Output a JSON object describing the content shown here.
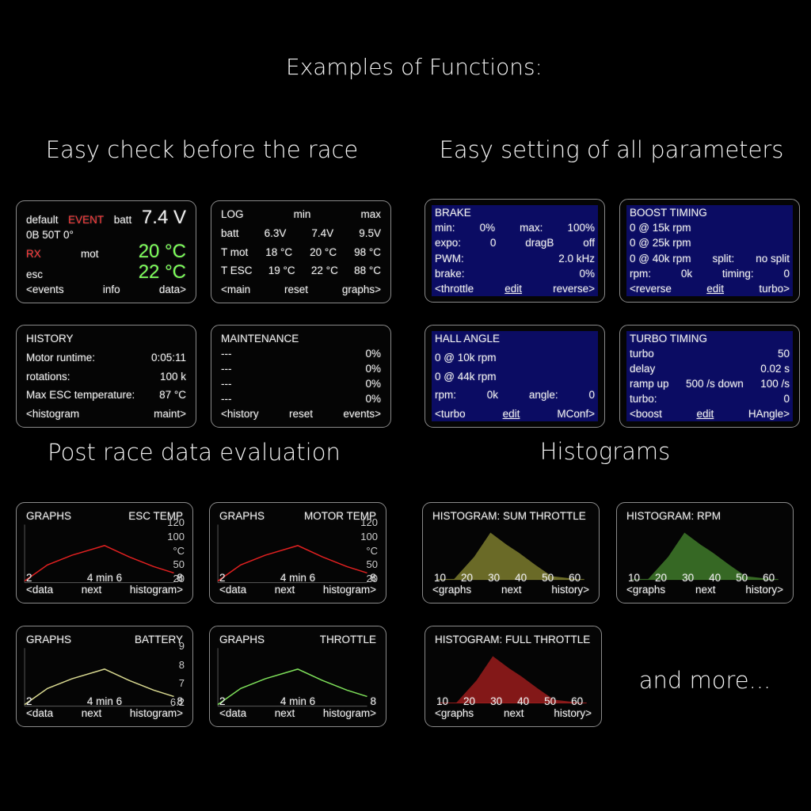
{
  "title": "Examples of Functions:",
  "footer_note": "and more...",
  "sections": [
    {
      "heading": "Easy check before the race",
      "screens": [
        {
          "type": "text",
          "rows": [
            [
              "default",
              {
                "text": "EVENT",
                "color": "#ff3b3b"
              },
              "batt",
              {
                "text": "7.4 V",
                "large": true
              }
            ],
            [
              "0B 50T 0°"
            ],
            [
              {
                "text": "RX",
                "color": "#ff3b3b"
              },
              "mot",
              {
                "text": "20 °C",
                "large": true,
                "color": "#7dff5a"
              }
            ],
            [
              "esc",
              {
                "text": "22 °C",
                "large": true,
                "color": "#7dff5a"
              }
            ],
            [
              "<events",
              "info",
              "data>"
            ]
          ]
        },
        {
          "type": "text",
          "rows": [
            [
              "LOG",
              "min",
              "max"
            ],
            [
              "batt",
              "6.3V",
              "7.4V",
              "9.5V"
            ],
            [
              "T mot",
              "18 °C",
              "20 °C",
              "98 °C"
            ],
            [
              "T ESC",
              "19 °C",
              "22 °C",
              "88 °C"
            ],
            [
              "<main",
              "reset",
              "graphs>"
            ]
          ]
        },
        {
          "type": "text",
          "rows": [
            [
              "HISTORY"
            ],
            [
              "Motor runtime:",
              "0:05:11"
            ],
            [
              "rotations:",
              "100 k"
            ],
            [
              "Max ESC temperature:",
              "87 °C"
            ],
            [
              "<histogram",
              "maint>"
            ]
          ]
        },
        {
          "type": "text",
          "rows": [
            [
              "MAINTENANCE"
            ],
            [
              "---",
              "0%"
            ],
            [
              "---",
              "0%"
            ],
            [
              "---",
              "0%"
            ],
            [
              "---",
              "0%"
            ],
            [
              "<history",
              "reset",
              "events>"
            ]
          ]
        }
      ]
    },
    {
      "heading": "Easy setting of all parameters",
      "screens": [
        {
          "type": "setting",
          "rows": [
            [
              "BRAKE"
            ],
            [
              "min:",
              "0%",
              "max:",
              "100%"
            ],
            [
              "expo:",
              "0",
              "dragB",
              "off"
            ],
            [
              "PWM:",
              "2.0 kHz"
            ],
            [
              "brake:",
              "0%"
            ],
            [
              "<throttle",
              {
                "text": "edit",
                "underline": true
              },
              "reverse>"
            ]
          ]
        },
        {
          "type": "setting",
          "rows": [
            [
              "BOOST TIMING"
            ],
            [
              "0 @ 15k rpm"
            ],
            [
              "0 @ 25k rpm"
            ],
            [
              "0 @ 40k rpm",
              "split:",
              "no split"
            ],
            [
              "rpm:",
              "0k",
              "timing:",
              "0"
            ],
            [
              "<reverse",
              {
                "text": "edit",
                "underline": true
              },
              "turbo>"
            ]
          ]
        },
        {
          "type": "setting",
          "rows": [
            [
              "HALL ANGLE"
            ],
            [
              "0 @ 10k rpm"
            ],
            [
              "0 @ 44k rpm"
            ],
            [
              "rpm:",
              "0k",
              "angle:",
              "0"
            ],
            [
              "<turbo",
              {
                "text": "edit",
                "underline": true
              },
              "MConf>"
            ]
          ]
        },
        {
          "type": "setting",
          "rows": [
            [
              "TURBO TIMING"
            ],
            [
              "turbo",
              "50"
            ],
            [
              "delay",
              "0.02 s"
            ],
            [
              "ramp up",
              "500 /s down",
              "100 /s"
            ],
            [
              "turbo:",
              "0"
            ],
            [
              "<boost",
              {
                "text": "edit",
                "underline": true
              },
              "HAngle>"
            ]
          ]
        }
      ]
    },
    {
      "heading": "Post race data evaluation",
      "screens": [
        {
          "type": "graph",
          "color": "#e02020",
          "rows": [
            [
              "GRAPHS",
              "ESC TEMP"
            ],
            [
              "2",
              "4 min 6",
              "8"
            ],
            [
              "<data",
              "next",
              "histogram>"
            ]
          ],
          "axis": [
            "120",
            "100",
            "°C",
            "50",
            "20"
          ]
        },
        {
          "type": "graph",
          "color": "#e02020",
          "rows": [
            [
              "GRAPHS",
              "MOTOR TEMP"
            ],
            [
              "2",
              "4 min 6",
              "8"
            ],
            [
              "<data",
              "next",
              "histogram>"
            ]
          ],
          "axis": [
            "120",
            "100",
            "°C",
            "50",
            "20"
          ]
        },
        {
          "type": "graph",
          "color": "#d8d890",
          "rows": [
            [
              "GRAPHS",
              "BATTERY"
            ],
            [
              "2",
              "4 min 6",
              "8"
            ],
            [
              "<data",
              "next",
              "histogram>"
            ]
          ],
          "axis": [
            "9",
            "8",
            "7",
            "6.2"
          ]
        },
        {
          "type": "graph",
          "color": "#7ee05a",
          "rows": [
            [
              "GRAPHS",
              "THROTTLE"
            ],
            [
              "2",
              "4 min 6",
              "8"
            ],
            [
              "<data",
              "next",
              "histogram>"
            ]
          ]
        }
      ]
    },
    {
      "heading": "Histograms",
      "screens": [
        {
          "type": "histogram",
          "color": "#7d7d2e",
          "rows": [
            [
              "HISTOGRAM: SUM THROTTLE"
            ],
            [
              "10",
              "20",
              "30",
              "40",
              "50",
              "60"
            ],
            [
              "<graphs",
              "next",
              "history>"
            ]
          ]
        },
        {
          "type": "histogram",
          "color": "#3f7a2a",
          "rows": [
            [
              "HISTOGRAM: RPM"
            ],
            [
              "10",
              "20",
              "30",
              "40",
              "50",
              "60"
            ],
            [
              "<graphs",
              "next",
              "history>"
            ]
          ]
        },
        {
          "type": "histogram",
          "color": "#9a1c1c",
          "rows": [
            [
              "HISTOGRAM: FULL THROTTLE"
            ],
            [
              "10",
              "20",
              "30",
              "40",
              "50",
              "60"
            ],
            [
              "<graphs",
              "next",
              "history>"
            ]
          ]
        }
      ]
    }
  ]
}
